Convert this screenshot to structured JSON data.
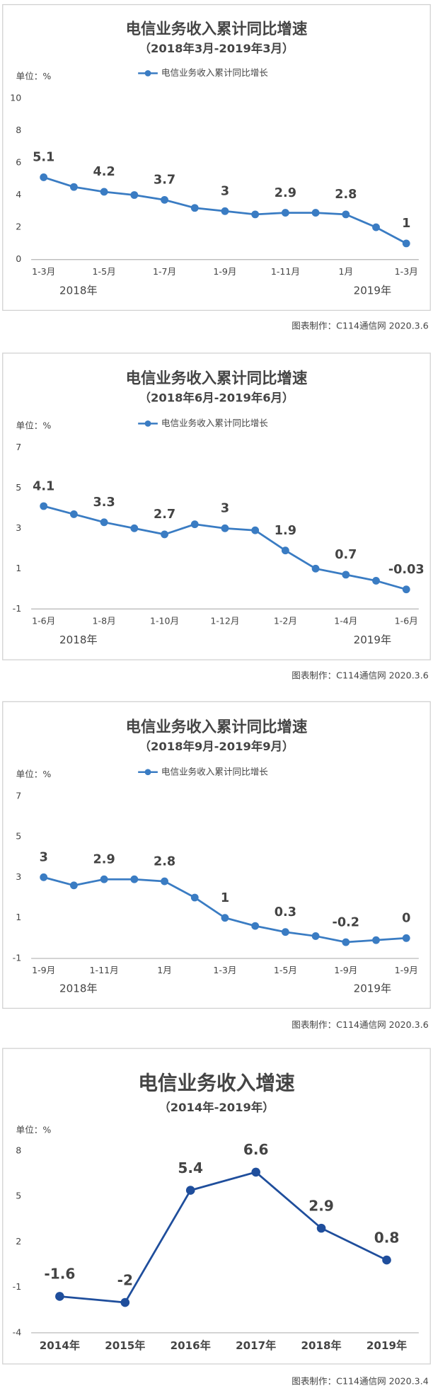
{
  "chart_data": [
    {
      "type": "line",
      "title": "电信业务收入累计同比增速",
      "subtitle": "（2018年3月-2019年3月）",
      "unit_label": "单位：%",
      "categories": [
        "1-3月",
        null,
        "1-5月",
        null,
        "1-7月",
        null,
        "1-9月",
        null,
        "1-11月",
        null,
        "1月",
        null,
        "1-3月"
      ],
      "series": [
        {
          "name": "电信业务收入累计同比增长",
          "color": "#3a7cc3",
          "values": [
            5.1,
            4.5,
            4.2,
            4.0,
            3.7,
            3.2,
            3.0,
            2.8,
            2.9,
            2.9,
            2.8,
            2.0,
            1.0
          ],
          "value_labels": [
            "5.1",
            null,
            "4.2",
            null,
            "3.7",
            null,
            "3",
            null,
            "2.9",
            null,
            "2.8",
            null,
            "1"
          ]
        }
      ],
      "annotations": [
        "2018年",
        "2019年"
      ],
      "ylim": [
        0,
        10
      ],
      "yticks": [
        0,
        2,
        4,
        6,
        8,
        10
      ],
      "source": "图表制作：C114通信网  2020.3.6"
    },
    {
      "type": "line",
      "title": "电信业务收入累计同比增速",
      "subtitle": "（2018年6月-2019年6月）",
      "unit_label": "单位：%",
      "categories": [
        "1-6月",
        null,
        "1-8月",
        null,
        "1-10月",
        null,
        "1-12月",
        null,
        "1-2月",
        null,
        "1-4月",
        null,
        "1-6月"
      ],
      "series": [
        {
          "name": "电信业务收入累计同比增长",
          "color": "#3a7cc3",
          "values": [
            4.1,
            3.7,
            3.3,
            3.0,
            2.7,
            3.2,
            3.0,
            2.9,
            1.9,
            1.0,
            0.7,
            0.4,
            -0.03
          ],
          "value_labels": [
            "4.1",
            null,
            "3.3",
            null,
            "2.7",
            null,
            "3",
            null,
            "1.9",
            null,
            "0.7",
            null,
            "-0.03"
          ]
        }
      ],
      "annotations": [
        "2018年",
        "2019年"
      ],
      "ylim": [
        -1,
        7
      ],
      "yticks": [
        -1,
        1,
        3,
        5,
        7
      ],
      "source": "图表制作：C114通信网  2020.3.6"
    },
    {
      "type": "line",
      "title": "电信业务收入累计同比增速",
      "subtitle": "（2018年9月-2019年9月）",
      "unit_label": "单位：%",
      "categories": [
        "1-9月",
        null,
        "1-11月",
        null,
        "1月",
        null,
        "1-3月",
        null,
        "1-5月",
        null,
        "1-9月",
        null,
        "1-9月"
      ],
      "series": [
        {
          "name": "电信业务收入累计同比增长",
          "color": "#3a7cc3",
          "values": [
            3,
            2.6,
            2.9,
            2.9,
            2.8,
            2.0,
            1.0,
            0.6,
            0.3,
            0.1,
            -0.2,
            -0.1,
            0
          ],
          "value_labels": [
            "3",
            null,
            "2.9",
            null,
            "2.8",
            null,
            "1",
            null,
            "0.3",
            null,
            "-0.2",
            null,
            "0"
          ]
        }
      ],
      "annotations": [
        "2018年",
        "2019年"
      ],
      "ylim": [
        -1,
        7
      ],
      "yticks": [
        -1,
        1,
        3,
        5,
        7
      ],
      "source": "图表制作：C114通信网  2020.3.6"
    },
    {
      "type": "line",
      "title": "电信业务收入增速",
      "subtitle": "（2014年-2019年）",
      "unit_label": "单位：%",
      "categories": [
        "2014年",
        "2015年",
        "2016年",
        "2017年",
        "2018年",
        "2019年"
      ],
      "series": [
        {
          "color": "#1f4e9c",
          "values": [
            -1.6,
            -2,
            5.4,
            6.6,
            2.9,
            0.8
          ]
        }
      ],
      "ylim": [
        -4,
        8
      ],
      "yticks": [
        -4,
        -1,
        2,
        5,
        8
      ],
      "source": "图表制作：C114通信网  2020.3.4"
    }
  ]
}
